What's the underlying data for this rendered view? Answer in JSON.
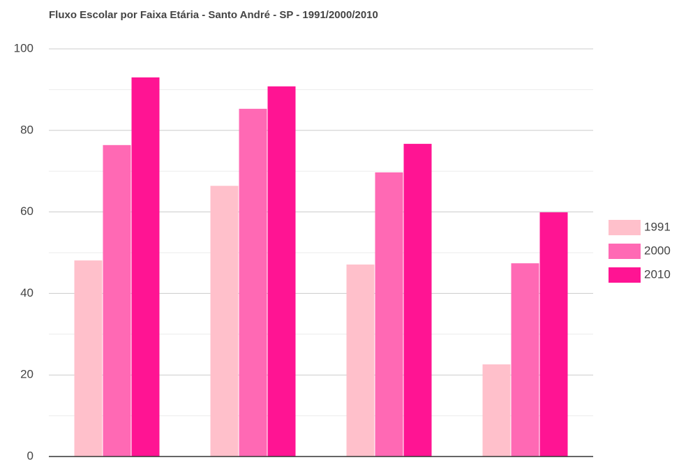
{
  "chart_data": {
    "type": "bar",
    "title": "Fluxo Escolar por Faixa Etária - Santo André - SP - 1991/2000/2010",
    "categories": [
      null,
      null,
      null,
      null
    ],
    "series": [
      {
        "name": "1991",
        "color": "#ffc0cb",
        "values": [
          48.1,
          66.4,
          47.1,
          22.6
        ]
      },
      {
        "name": "2000",
        "color": "#ff69b4",
        "values": [
          76.4,
          85.3,
          69.7,
          47.4
        ]
      },
      {
        "name": "2010",
        "color": "#ff1493",
        "values": [
          93.0,
          90.8,
          76.7,
          59.9
        ]
      }
    ],
    "ylim": [
      0,
      100
    ],
    "yticks": [
      0,
      20,
      40,
      60,
      80,
      100
    ],
    "minor_yticks": [
      10,
      30,
      50,
      70,
      90
    ],
    "grid": true,
    "legend": "right"
  }
}
